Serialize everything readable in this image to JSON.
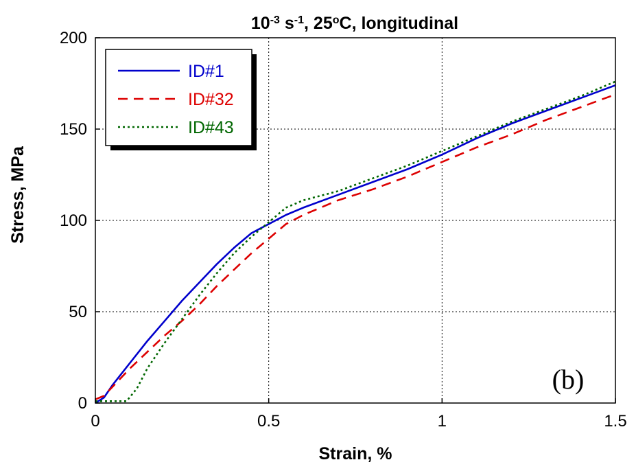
{
  "chart_data": {
    "type": "line",
    "title": {
      "parts": [
        {
          "text": "10",
          "sup": false
        },
        {
          "text": "-3",
          "sup": true
        },
        {
          "text": " s",
          "sup": false
        },
        {
          "text": "-1",
          "sup": true
        },
        {
          "text": ", 25",
          "sup": false
        },
        {
          "text": "o",
          "sup": true
        },
        {
          "text": "C, longitudinal",
          "sup": false
        }
      ]
    },
    "xlabel": "Strain, %",
    "ylabel": "Stress, MPa",
    "xlim": [
      0,
      1.5
    ],
    "ylim": [
      0,
      200
    ],
    "xticks": [
      0,
      0.5,
      1,
      1.5
    ],
    "xtick_labels": [
      "0",
      "0.5",
      "1",
      "1.5"
    ],
    "yticks": [
      0,
      50,
      100,
      150,
      200
    ],
    "ytick_labels": [
      "0",
      "50",
      "100",
      "150",
      "200"
    ],
    "grid": true,
    "legend_position": "top-left",
    "annotation": "(b)",
    "series": [
      {
        "name": "ID#1",
        "color": "#0000cc",
        "dash": "solid",
        "x": [
          0,
          0.025,
          0.05,
          0.1,
          0.15,
          0.2,
          0.25,
          0.3,
          0.35,
          0.4,
          0.45,
          0.5,
          0.55,
          0.6,
          0.7,
          0.8,
          0.9,
          1.0,
          1.1,
          1.2,
          1.3,
          1.4,
          1.5
        ],
        "y": [
          0,
          3,
          10,
          22,
          34,
          45,
          56,
          66,
          76,
          85,
          93,
          98,
          103,
          107,
          114,
          121,
          128,
          136,
          145,
          153,
          160,
          167,
          174
        ]
      },
      {
        "name": "ID#32",
        "color": "#dd0000",
        "dash": "dashed",
        "x": [
          0,
          0.025,
          0.05,
          0.1,
          0.15,
          0.2,
          0.25,
          0.3,
          0.35,
          0.4,
          0.45,
          0.5,
          0.55,
          0.6,
          0.7,
          0.8,
          0.9,
          1.0,
          1.1,
          1.2,
          1.3,
          1.4,
          1.5
        ],
        "y": [
          2,
          4,
          9,
          19,
          28,
          37,
          45,
          54,
          64,
          73,
          82,
          90,
          98,
          103,
          111,
          117,
          124,
          132,
          140,
          147,
          155,
          162,
          169
        ]
      },
      {
        "name": "ID#43",
        "color": "#006600",
        "dash": "dotted",
        "x": [
          0,
          0.05,
          0.09,
          0.12,
          0.15,
          0.2,
          0.25,
          0.3,
          0.35,
          0.4,
          0.45,
          0.5,
          0.55,
          0.6,
          0.7,
          0.8,
          0.9,
          1.0,
          1.1,
          1.2,
          1.3,
          1.4,
          1.5
        ],
        "y": [
          1,
          1,
          1,
          8,
          19,
          33,
          46,
          59,
          71,
          82,
          91,
          99,
          107,
          111,
          116,
          123,
          130,
          138,
          146,
          154,
          161,
          168,
          176
        ]
      }
    ]
  }
}
